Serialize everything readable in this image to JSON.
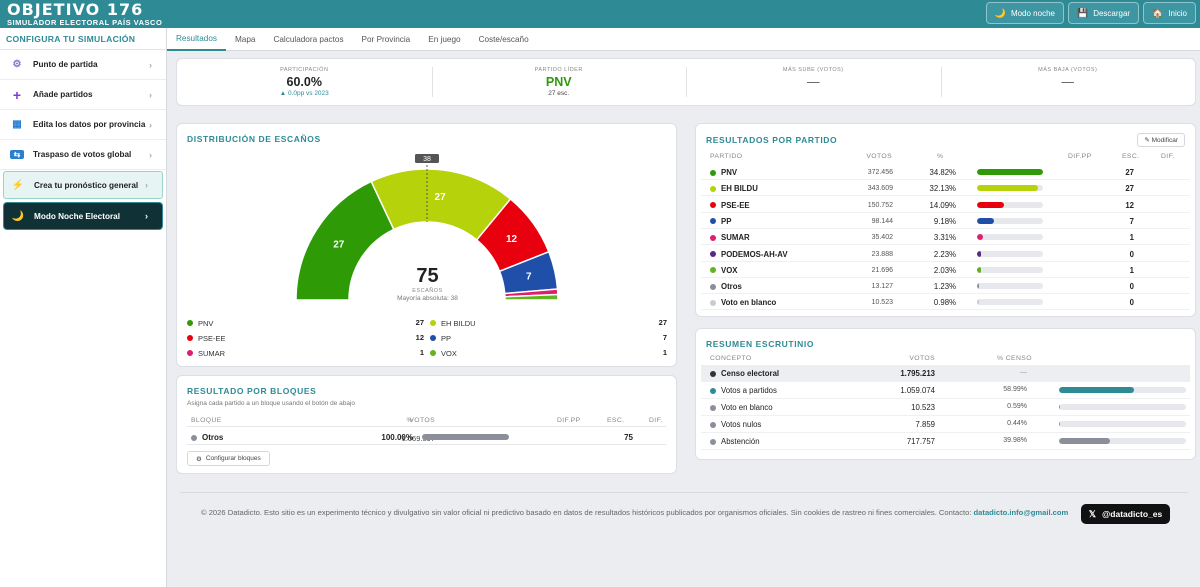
{
  "header": {
    "title": "OBJETIVO 176",
    "subtitle": "SIMULADOR ELECTORAL PAÍS VASCO",
    "buttons": [
      {
        "icon": "moon-icon",
        "label": "Modo noche"
      },
      {
        "icon": "save-icon",
        "label": "Descargar"
      },
      {
        "icon": "home-icon",
        "label": "Inicio"
      }
    ]
  },
  "sidebar": {
    "title": "CONFIGURA TU SIMULACIÓN",
    "items": [
      {
        "icon": "gear-icon",
        "label": "Punto de partida"
      },
      {
        "icon": "plus-icon",
        "label": "Añade partidos"
      },
      {
        "icon": "map-icon",
        "label": "Edita los datos por provincia"
      },
      {
        "icon": "transfer-icon",
        "label": "Traspaso de votos global"
      },
      {
        "icon": "bolt-icon",
        "label": "Crea tu pronóstico general"
      },
      {
        "icon": "moon-icon",
        "label": "Modo Noche Electoral"
      }
    ]
  },
  "tabs": [
    "Resultados",
    "Mapa",
    "Calculadora pactos",
    "Por Provincia",
    "En juego",
    "Coste/escaño"
  ],
  "kpis": [
    {
      "label": "PARTICIPACIÓN",
      "value": "60.0%",
      "sub": "▲ 0.0pp vs 2023"
    },
    {
      "label": "PARTIDO LÍDER",
      "value": "PNV",
      "sub": "27 esc."
    },
    {
      "label": "MÁS SUBE (VOTOS)",
      "value": "—",
      "sub": ""
    },
    {
      "label": "MÁS BAJA (VOTOS)",
      "value": "—",
      "sub": ""
    }
  ],
  "seats": {
    "title": "DISTRIBUCIÓN DE ESCAÑOS",
    "total": "75",
    "total_label": "ESCAÑOS",
    "majority_text": "Mayoría absoluta: 38",
    "majority_marker": "38",
    "legend": [
      {
        "name": "PNV",
        "seats": "27",
        "color": "#2e9a06"
      },
      {
        "name": "EH BILDU",
        "seats": "27",
        "color": "#b5d20a"
      },
      {
        "name": "PSE-EE",
        "seats": "12",
        "color": "#e8000e"
      },
      {
        "name": "PP",
        "seats": "7",
        "color": "#1f4fa8"
      },
      {
        "name": "SUMAR",
        "seats": "1",
        "color": "#e01e6f"
      },
      {
        "name": "VOX",
        "seats": "1",
        "color": "#63b21e"
      }
    ]
  },
  "chart_data": {
    "type": "pie",
    "title": "DISTRIBUCIÓN DE ESCAÑOS",
    "categories": [
      "PNV",
      "EH BILDU",
      "PSE-EE",
      "PP",
      "SUMAR",
      "VOX"
    ],
    "values": [
      27,
      27,
      12,
      7,
      1,
      1
    ],
    "colors": [
      "#2e9a06",
      "#b5d20a",
      "#e8000e",
      "#1f4fa8",
      "#e01e6f",
      "#63b21e"
    ]
  },
  "blocks": {
    "title": "RESULTADO POR BLOQUES",
    "subtitle": "Asigna cada partido a un bloque usando el botón de abajo",
    "headers": [
      "BLOQUE",
      "VOTOS",
      "%",
      "DIF.PP",
      "ESC.",
      "DIF."
    ],
    "rows": [
      {
        "name": "Otros",
        "votes": "1.069.597",
        "pct": "100.00%",
        "seats": "75",
        "color": "#8a8f99"
      }
    ],
    "button": "Configurar bloques"
  },
  "results": {
    "title": "RESULTADOS POR PARTIDO",
    "modify": "✎ Modificar",
    "headers": [
      "PARTIDO",
      "VOTOS",
      "%",
      "DIF.PP",
      "ESC.",
      "DIF."
    ],
    "rows": [
      {
        "name": "PNV",
        "votes": "372.456",
        "pct": "34.82%",
        "seats": "27",
        "color": "#2e9a06",
        "share": 34.82
      },
      {
        "name": "EH BILDU",
        "votes": "343.609",
        "pct": "32.13%",
        "seats": "27",
        "color": "#b5d20a",
        "share": 32.13
      },
      {
        "name": "PSE-EE",
        "votes": "150.752",
        "pct": "14.09%",
        "seats": "12",
        "color": "#e8000e",
        "share": 14.09
      },
      {
        "name": "PP",
        "votes": "98.144",
        "pct": "9.18%",
        "seats": "7",
        "color": "#1f4fa8",
        "share": 9.18
      },
      {
        "name": "SUMAR",
        "votes": "35.402",
        "pct": "3.31%",
        "seats": "1",
        "color": "#e01e6f",
        "share": 3.31
      },
      {
        "name": "PODEMOS-AH-AV",
        "votes": "23.888",
        "pct": "2.23%",
        "seats": "0",
        "color": "#5a2a82",
        "share": 2.23
      },
      {
        "name": "VOX",
        "votes": "21.696",
        "pct": "2.03%",
        "seats": "1",
        "color": "#63b21e",
        "share": 2.03
      },
      {
        "name": "Otros",
        "votes": "13.127",
        "pct": "1.23%",
        "seats": "0",
        "color": "#8a8f99",
        "share": 1.23
      },
      {
        "name": "Voto en blanco",
        "votes": "10.523",
        "pct": "0.98%",
        "seats": "0",
        "color": "#c8ccd2",
        "share": 0.98
      }
    ]
  },
  "scrutiny": {
    "title": "RESUMEN ESCRUTINIO",
    "headers": [
      "CONCEPTO",
      "VOTOS",
      "% CENSO"
    ],
    "rows": [
      {
        "name": "Censo electoral",
        "votes": "1.795.213",
        "pct": "—",
        "color": "#333",
        "share": 0
      },
      {
        "name": "Votos a partidos",
        "votes": "1.059.074",
        "pct": "58.99%",
        "color": "#2e8b96",
        "share": 58.99
      },
      {
        "name": "Voto en blanco",
        "votes": "10.523",
        "pct": "0.59%",
        "color": "#8a8f99",
        "share": 0.59
      },
      {
        "name": "Votos nulos",
        "votes": "7.859",
        "pct": "0.44%",
        "color": "#8a8f99",
        "share": 0.44
      },
      {
        "name": "Abstención",
        "votes": "717.757",
        "pct": "39.98%",
        "color": "#8a8f99",
        "share": 39.98
      }
    ]
  },
  "footer": {
    "text": "© 2026 Datadicto. Esto sitio es un experimento técnico y divulgativo sin valor oficial ni predictivo basado en datos de resultados históricos publicados por organismos oficiales. Sin cookies de rastreo ni fines comerciales. Contacto: ",
    "email": "datadicto.info@gmail.com",
    "x_label": "@datadicto_es"
  }
}
